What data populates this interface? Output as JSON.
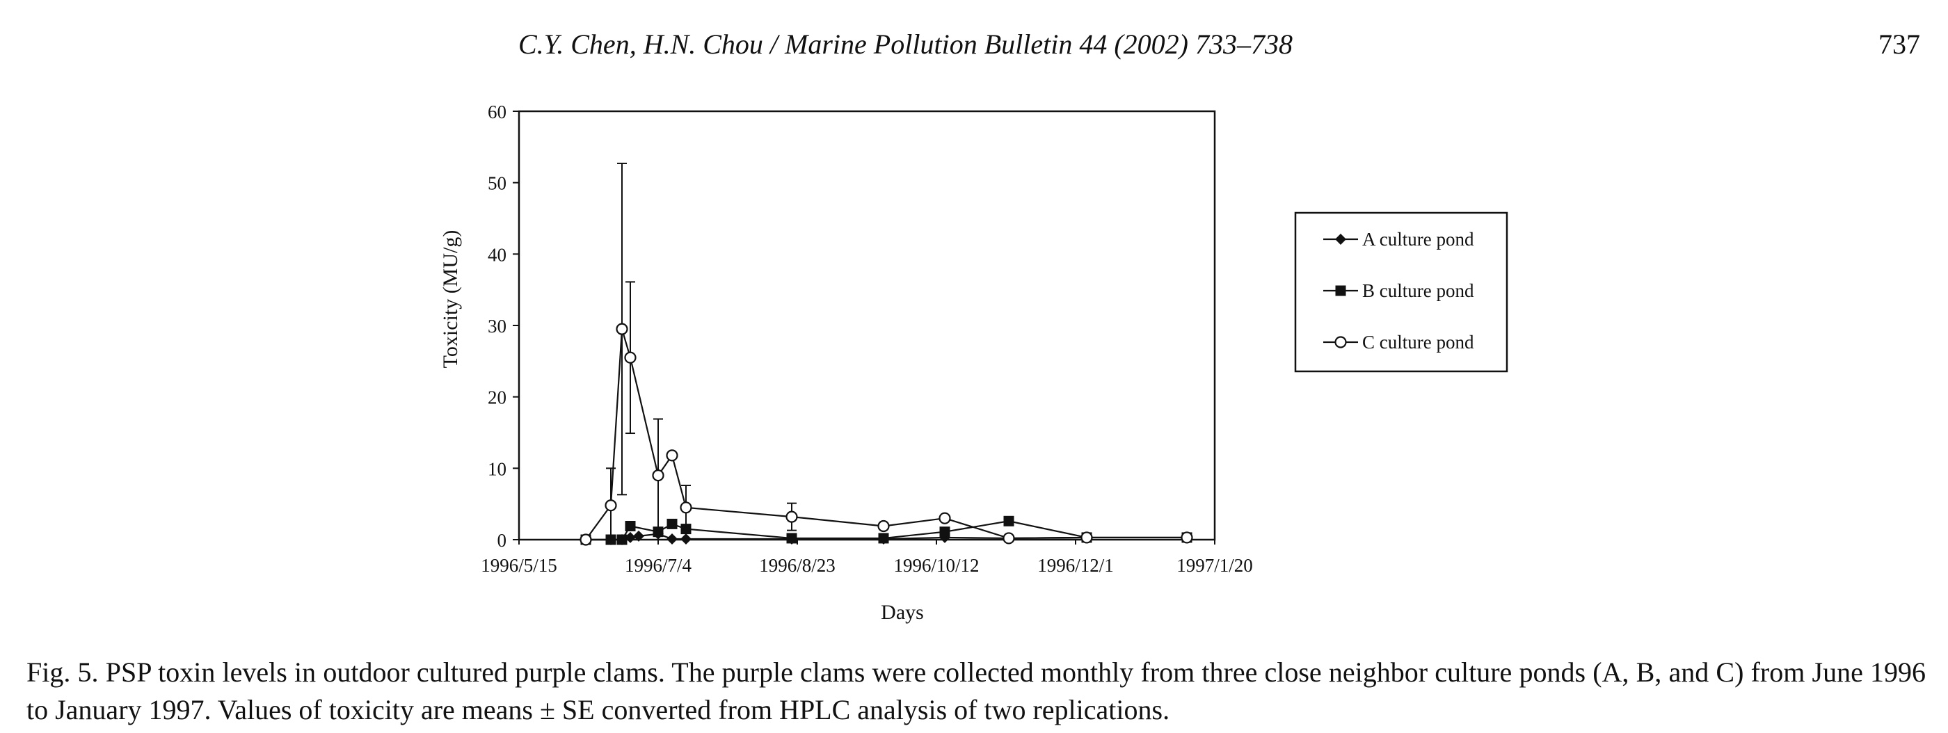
{
  "header": {
    "running_title": "C.Y. Chen, H.N. Chou / Marine Pollution Bulletin 44 (2002) 733–738",
    "page_number": "737"
  },
  "chart_data": {
    "type": "line",
    "title": "",
    "xlabel": "Days",
    "ylabel": "Toxicity (MU/g)",
    "x_axis_type": "date",
    "xlim": [
      "1996/5/15",
      "1997/1/20"
    ],
    "ylim": [
      0,
      60
    ],
    "x_ticks": [
      "1996/5/15",
      "1996/7/4",
      "1996/8/23",
      "1996/10/12",
      "1996/12/1",
      "1997/1/20"
    ],
    "y_ticks": [
      0,
      10,
      20,
      30,
      40,
      50,
      60
    ],
    "legend_position": "right",
    "series": [
      {
        "name": "A culture pond",
        "marker": "diamond",
        "x": [
          "1996/6/8",
          "1996/6/17",
          "1996/6/21",
          "1996/6/24",
          "1996/6/27",
          "1996/7/4",
          "1996/7/9",
          "1996/7/14",
          "1996/8/21",
          "1996/9/23",
          "1996/10/15",
          "1996/11/7",
          "1996/12/5",
          "1997/1/10"
        ],
        "y": [
          0,
          0,
          0,
          0.3,
          0.5,
          0.8,
          0.1,
          0.1,
          0.1,
          0.1,
          0.3,
          0.2,
          0.3,
          0.3
        ]
      },
      {
        "name": "B culture pond",
        "marker": "square",
        "x": [
          "1996/6/8",
          "1996/6/17",
          "1996/6/21",
          "1996/6/24",
          "1996/7/4",
          "1996/7/9",
          "1996/7/14",
          "1996/8/21",
          "1996/9/23",
          "1996/10/15",
          "1996/11/7",
          "1996/12/5",
          "1997/1/10"
        ],
        "y": [
          0,
          0,
          0,
          1.9,
          1.1,
          2.2,
          1.5,
          0.2,
          0.2,
          1.1,
          2.6,
          0.3,
          0.3
        ]
      },
      {
        "name": "C culture pond",
        "marker": "open-circle",
        "x": [
          "1996/6/8",
          "1996/6/17",
          "1996/6/21",
          "1996/6/24",
          "1996/7/4",
          "1996/7/9",
          "1996/7/14",
          "1996/8/21",
          "1996/9/23",
          "1996/10/15",
          "1996/11/7",
          "1996/12/5",
          "1997/1/10"
        ],
        "y": [
          0,
          4.8,
          29.5,
          25.5,
          9.0,
          11.8,
          4.5,
          3.2,
          1.9,
          3.0,
          0.2,
          0.3,
          0.3
        ],
        "error": [
          0,
          5.2,
          23.2,
          10.6,
          7.9,
          0,
          3.1,
          1.9,
          0,
          0,
          0,
          0,
          0
        ]
      }
    ]
  },
  "caption": {
    "text": "Fig. 5. PSP toxin levels in outdoor cultured purple clams. The purple clams were collected monthly from three close neighbor culture ponds (A, B, and C) from June 1996 to January 1997. Values of toxicity are means ± SE converted from HPLC analysis of two replications."
  }
}
